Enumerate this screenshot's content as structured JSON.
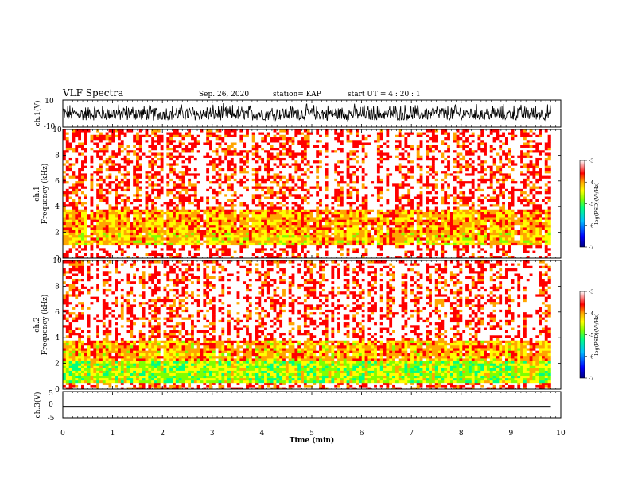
{
  "header": {
    "title": "VLF Spectra",
    "date": "Sep. 26, 2020",
    "station": "station= KAP",
    "start_ut": "start  UT =   4 : 20 : 1"
  },
  "colors": {
    "waveform": "#000000",
    "colormap": [
      "#00007f",
      "#0000ff",
      "#00bfff",
      "#00ff80",
      "#7fff00",
      "#ffff00",
      "#ffa500",
      "#ff0000",
      "#ffffff"
    ]
  },
  "chart_data": [
    {
      "type": "line",
      "panel": "ch1-waveform",
      "ylabel": "ch.1(V)",
      "ylim": [
        -10,
        10
      ],
      "yticks": [
        "10",
        "-10"
      ],
      "description_values": {
        "typical_min": -5,
        "typical_max": 8
      }
    },
    {
      "type": "heatmap",
      "panel": "ch1-spectrogram",
      "ylabel": "ch.1\nFrequency  (kHz)",
      "ylabel_lines": [
        "ch.1",
        "Frequency  (kHz)"
      ],
      "ylim": [
        0,
        10
      ],
      "yticks": [
        "0",
        "2",
        "4",
        "6",
        "8",
        "10"
      ],
      "xlim": [
        0,
        9.8
      ],
      "colorbar": {
        "label": "log(PSD)(V²/Hz)",
        "range": [
          -7,
          -3
        ],
        "ticks": [
          "-3",
          "-4",
          "-5",
          "-6",
          "-7"
        ]
      },
      "bands": [
        {
          "f_low": 0.0,
          "f_high": 1.0,
          "level": -3.2
        },
        {
          "f_low": 1.0,
          "f_high": 2.0,
          "level": -4.3
        },
        {
          "f_low": 2.0,
          "f_high": 3.8,
          "level": -4.1
        },
        {
          "f_low": 3.8,
          "f_high": 10.0,
          "level": -3.3
        }
      ]
    },
    {
      "type": "heatmap",
      "panel": "ch2-spectrogram",
      "ylabel": "ch.2\nFrequency  (kHz)",
      "ylabel_lines": [
        "ch.2",
        "Frequency  (kHz)"
      ],
      "ylim": [
        0,
        10
      ],
      "yticks": [
        "0",
        "2",
        "4",
        "6",
        "8",
        "10"
      ],
      "xlim": [
        0,
        9.8
      ],
      "colorbar": {
        "label": "log(PSD)(V²/Hz)",
        "range": [
          -7,
          -3
        ],
        "ticks": [
          "-3",
          "-4",
          "-5",
          "-6",
          "-7"
        ]
      },
      "bands": [
        {
          "f_low": 0.0,
          "f_high": 0.5,
          "level": -3.4
        },
        {
          "f_low": 0.5,
          "f_high": 2.2,
          "level": -5.0
        },
        {
          "f_low": 2.2,
          "f_high": 3.8,
          "level": -4.2
        },
        {
          "f_low": 3.8,
          "f_high": 10.0,
          "level": -3.3
        }
      ]
    },
    {
      "type": "line",
      "panel": "ch3-waveform",
      "ylabel": "ch.3(V)",
      "ylim": [
        -5,
        5
      ],
      "yticks": [
        "5",
        "0",
        "-5"
      ],
      "description_values": {
        "typical_min": -1,
        "typical_max": -0.5
      }
    }
  ],
  "xaxis": {
    "label": "Time  (min)",
    "range": [
      0,
      10
    ],
    "ticks": [
      "0",
      "1",
      "2",
      "3",
      "4",
      "5",
      "6",
      "7",
      "8",
      "9",
      "10"
    ]
  }
}
